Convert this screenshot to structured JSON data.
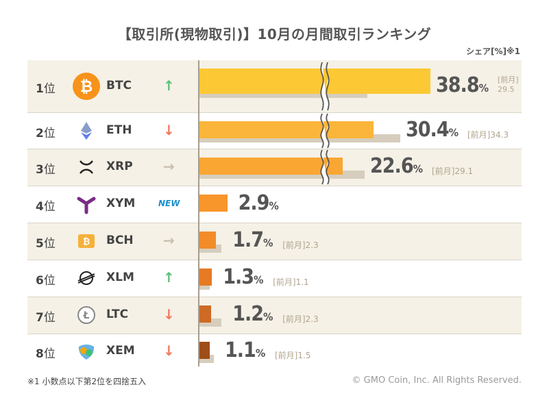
{
  "title": "【取引所(現物取引)】10月の月間取引ランキング",
  "unit_label": "シェア[%]※1",
  "prev_label": "[前月]",
  "footnote": "※1 小数点以下第2位を四捨五入",
  "copyright": "© GMO Coin, Inc. All Rights Reserved.",
  "colors": {
    "bar_current": [
      "#fcc834",
      "#fbb53a",
      "#faa632",
      "#f8962c",
      "#f28c28",
      "#e67a25",
      "#cd6a25",
      "#9e4e18"
    ],
    "bar_previous": "#d6cdbd",
    "trend_up": "#5bbf7a",
    "trend_down": "#ee7a5e",
    "trend_flat": "#c8bfae",
    "new_badge": "#1a8fd0"
  },
  "rows": [
    {
      "rank_num": "1",
      "rank_unit": "位",
      "symbol": "BTC",
      "icon": "bitcoin-icon",
      "trend": "up",
      "trend_glyph": "↑",
      "share": "38.8",
      "prev": "29.5",
      "broken": true
    },
    {
      "rank_num": "2",
      "rank_unit": "位",
      "symbol": "ETH",
      "icon": "ethereum-icon",
      "trend": "down",
      "trend_glyph": "↓",
      "share": "30.4",
      "prev": "34.3",
      "broken": true
    },
    {
      "rank_num": "3",
      "rank_unit": "位",
      "symbol": "XRP",
      "icon": "xrp-icon",
      "trend": "flat",
      "trend_glyph": "→",
      "share": "22.6",
      "prev": "29.1",
      "broken": true
    },
    {
      "rank_num": "4",
      "rank_unit": "位",
      "symbol": "XYM",
      "icon": "symbol-icon",
      "trend": "new",
      "trend_glyph": "NEW",
      "share": "2.9",
      "prev": null,
      "broken": false
    },
    {
      "rank_num": "5",
      "rank_unit": "位",
      "symbol": "BCH",
      "icon": "bitcoin-cash-icon",
      "trend": "flat",
      "trend_glyph": "→",
      "share": "1.7",
      "prev": "2.3",
      "broken": false
    },
    {
      "rank_num": "6",
      "rank_unit": "位",
      "symbol": "XLM",
      "icon": "stellar-icon",
      "trend": "up",
      "trend_glyph": "↑",
      "share": "1.3",
      "prev": "1.1",
      "broken": false
    },
    {
      "rank_num": "7",
      "rank_unit": "位",
      "symbol": "LTC",
      "icon": "litecoin-icon",
      "trend": "down",
      "trend_glyph": "↓",
      "share": "1.2",
      "prev": "2.3",
      "broken": false
    },
    {
      "rank_num": "8",
      "rank_unit": "位",
      "symbol": "XEM",
      "icon": "nem-icon",
      "trend": "down",
      "trend_glyph": "↓",
      "share": "1.1",
      "prev": "1.5",
      "broken": false
    }
  ],
  "chart_data": {
    "type": "bar",
    "orientation": "horizontal",
    "title": "【取引所(現物取引)】10月の月間取引ランキング",
    "unit": "シェア[%]",
    "categories": [
      "BTC",
      "ETH",
      "XRP",
      "XYM",
      "BCH",
      "XLM",
      "LTC",
      "XEM"
    ],
    "series": [
      {
        "name": "",
        "values": [
          38.8,
          30.4,
          22.6,
          2.9,
          1.7,
          1.3,
          1.2,
          1.1
        ]
      },
      {
        "name": "[前月]",
        "values": [
          29.5,
          34.3,
          29.1,
          null,
          2.3,
          1.1,
          2.3,
          1.5
        ]
      }
    ],
    "axis_break": true
  }
}
